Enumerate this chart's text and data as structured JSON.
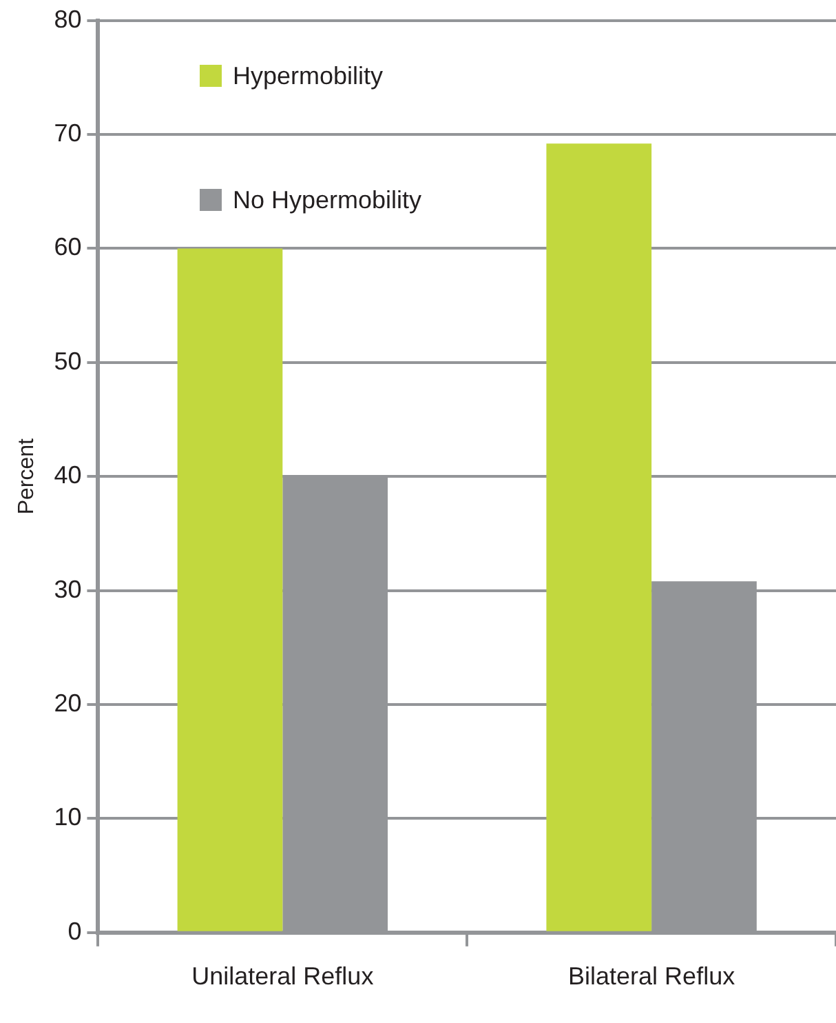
{
  "chart_data": {
    "type": "bar",
    "categories": [
      "Unilateral Reflux",
      "Bilateral Reflux"
    ],
    "series": [
      {
        "name": "Hypermobility",
        "color": "#c2d83e",
        "values": [
          60,
          69.2
        ]
      },
      {
        "name": "No Hypermobility",
        "color": "#939598",
        "values": [
          40,
          30.8
        ]
      }
    ],
    "ylabel": "Percent",
    "ylim": [
      0,
      80
    ],
    "yticks": [
      0,
      10,
      20,
      30,
      40,
      50,
      60,
      70,
      80
    ],
    "grid": "y",
    "legend": "top left"
  }
}
